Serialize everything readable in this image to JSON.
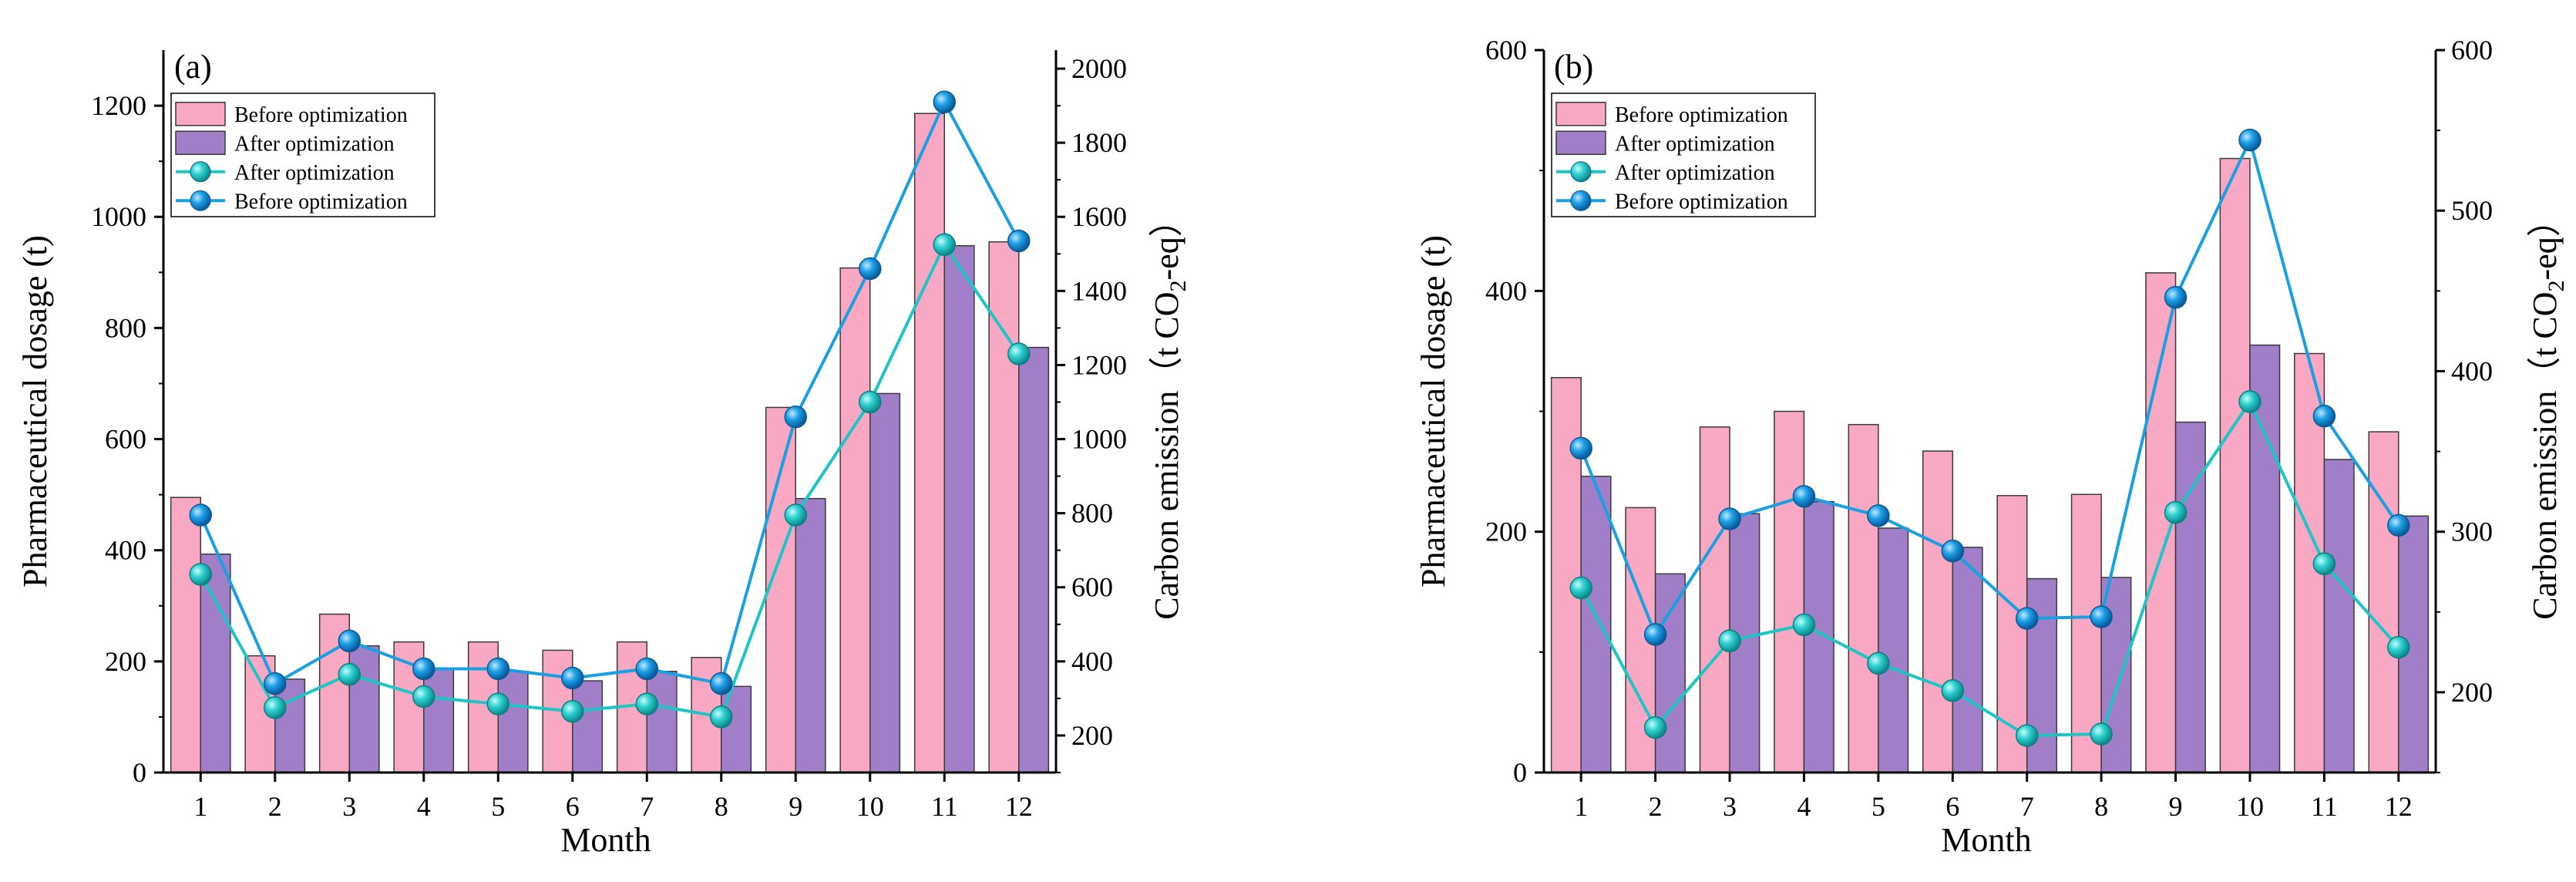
{
  "chart_data": [
    {
      "id": "a",
      "type": "bar+line",
      "panel_label": "(a)",
      "xlabel": "Month",
      "ylabel_left": "Pharmaceutical dosage (t)",
      "ylabel_right": "Carbon emission（t CO",
      "ylabel_right_sub": "2",
      "ylabel_right_suffix": "-eq）",
      "categories": [
        "1",
        "2",
        "3",
        "4",
        "5",
        "6",
        "7",
        "8",
        "9",
        "10",
        "11",
        "12"
      ],
      "ylim_left": [
        0,
        1300
      ],
      "yticks_left": [
        0,
        200,
        400,
        600,
        800,
        1000,
        1200
      ],
      "ylim_right": [
        100,
        2050
      ],
      "yticks_right": [
        200,
        400,
        600,
        800,
        1000,
        1200,
        1400,
        1600,
        1800,
        2000
      ],
      "bars": [
        {
          "name": "Before optimization",
          "color": "#f9a8c4",
          "values": [
            495,
            210,
            285,
            235,
            235,
            220,
            235,
            207,
            657,
            908,
            1186,
            955
          ]
        },
        {
          "name": "After optimization",
          "color": "#a07fc8",
          "values": [
            393,
            168,
            228,
            188,
            182,
            165,
            182,
            155,
            493,
            682,
            948,
            765
          ]
        }
      ],
      "lines": [
        {
          "name": "After optimization",
          "color": "#1fc4c4",
          "values": [
            635,
            275,
            365,
            305,
            285,
            265,
            285,
            250,
            795,
            1100,
            1525,
            1230
          ]
        },
        {
          "name": "Before optimization",
          "color": "#1a9fe0",
          "values": [
            795,
            340,
            455,
            380,
            380,
            355,
            380,
            340,
            1060,
            1460,
            1910,
            1535
          ]
        }
      ]
    },
    {
      "id": "b",
      "type": "bar+line",
      "panel_label": "(b)",
      "xlabel": "Month",
      "ylabel_left": "Pharmaceutical dosage (t)",
      "ylabel_right": "Carbon emission（t CO",
      "ylabel_right_sub": "2",
      "ylabel_right_suffix": "-eq）",
      "categories": [
        "1",
        "2",
        "3",
        "4",
        "5",
        "6",
        "7",
        "8",
        "9",
        "10",
        "11",
        "12"
      ],
      "ylim_left": [
        0,
        600
      ],
      "yticks_left": [
        0,
        200,
        400,
        600
      ],
      "ylim_right": [
        150,
        600
      ],
      "yticks_right": [
        200,
        300,
        400,
        500,
        600
      ],
      "bars": [
        {
          "name": "Before optimization",
          "color": "#f9a8c4",
          "values": [
            328,
            220,
            287,
            300,
            289,
            267,
            230,
            231,
            415,
            510,
            348,
            283
          ]
        },
        {
          "name": "After optimization",
          "color": "#a07fc8",
          "values": [
            246,
            165,
            215,
            225,
            203,
            187,
            161,
            162,
            291,
            355,
            260,
            213
          ]
        }
      ],
      "lines": [
        {
          "name": "After optimization",
          "color": "#1fc4c4",
          "values": [
            265,
            178,
            232,
            242,
            218,
            201,
            173,
            174,
            312,
            381,
            280,
            228
          ]
        },
        {
          "name": "Before optimization",
          "color": "#1a9fe0",
          "values": [
            352,
            236,
            308,
            322,
            310,
            288,
            246,
            247,
            446,
            544,
            372,
            304
          ]
        }
      ]
    }
  ]
}
